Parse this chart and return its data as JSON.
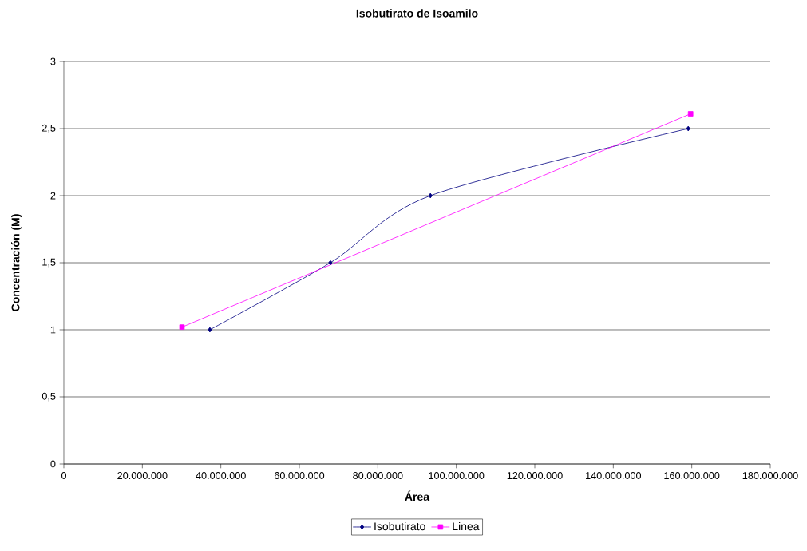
{
  "chart_data": {
    "type": "line",
    "title": "Isobutirato de Isoamilo",
    "xlabel": "Área",
    "ylabel": "Concentración (M)",
    "series": [
      {
        "name": "Isobutirato",
        "color": "#000080",
        "marker": "diamond",
        "x": [
          37200000,
          67900000,
          93400000,
          159100000
        ],
        "values": [
          1,
          1.5,
          2,
          2.5
        ]
      },
      {
        "name": "Linea",
        "color": "#ff00ff",
        "marker": "square",
        "x": [
          30100000,
          159700000
        ],
        "values": [
          1.02,
          2.61
        ]
      }
    ],
    "xlim": [
      0,
      180000000
    ],
    "xticks": [
      0,
      {
        "value": 20000000,
        "label": "20.000.000"
      },
      {
        "value": 40000000,
        "label": "40.000.000"
      },
      {
        "value": 60000000,
        "label": "60.000.000"
      },
      {
        "value": 80000000,
        "label": "80.000.000"
      },
      {
        "value": 100000000,
        "label": "100.000.000"
      },
      {
        "value": 120000000,
        "label": "120.000.000"
      },
      {
        "value": 140000000,
        "label": "140.000.000"
      },
      {
        "value": 160000000,
        "label": "160.000.000"
      },
      {
        "value": 180000000,
        "label": "180.000.000"
      }
    ],
    "ylim": [
      0,
      3
    ],
    "yticks": [
      0,
      {
        "value": 0.5,
        "label": "0,5"
      },
      1,
      {
        "value": 1.5,
        "label": "1,5"
      },
      2,
      {
        "value": 2.5,
        "label": "2,5"
      },
      3
    ],
    "grid": "y",
    "legend": "bottom"
  }
}
